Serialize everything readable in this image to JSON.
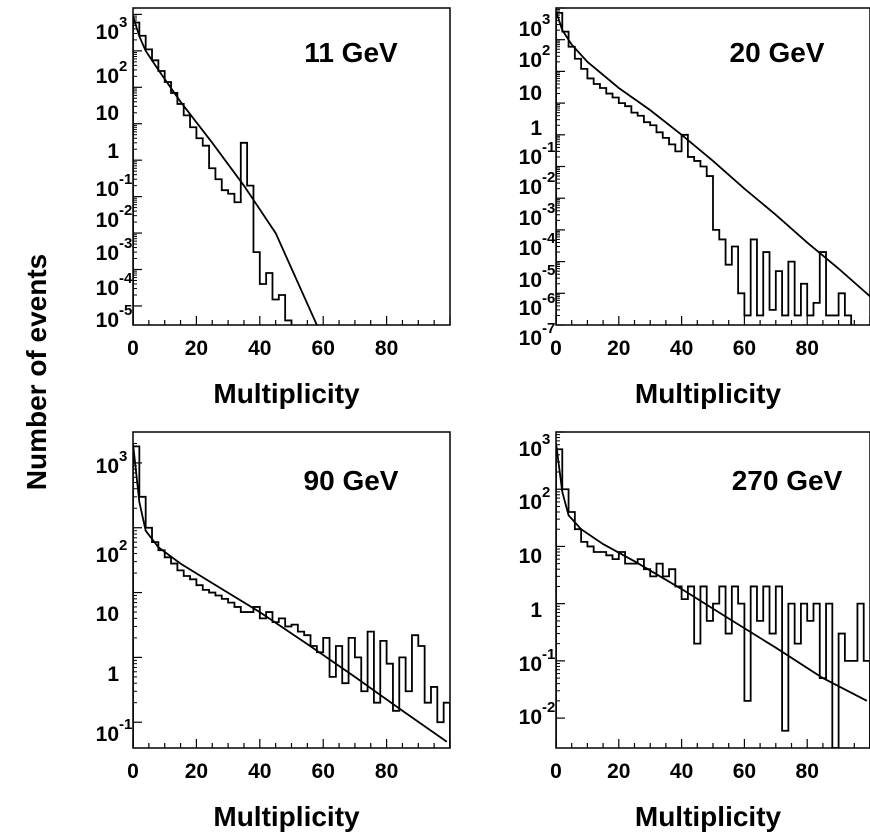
{
  "ylabel": "Number of events",
  "chart_data": [
    {
      "type": "line",
      "title": "11 GeV",
      "xlabel": "Multiplicity",
      "xlim": [
        0,
        100
      ],
      "xticks": [
        "0",
        "20",
        "40",
        "60",
        "80"
      ],
      "yscale": "log",
      "ylim": [
        3e-06,
        1500
      ],
      "yticks": [
        {
          "base": "10",
          "exp": "3"
        },
        {
          "base": "10",
          "exp": "2"
        },
        {
          "base": "10",
          "exp": ""
        },
        {
          "base": "1",
          "exp": ""
        },
        {
          "base": "10",
          "exp": "-1"
        },
        {
          "base": "10",
          "exp": "-2"
        },
        {
          "base": "10",
          "exp": "-3"
        },
        {
          "base": "10",
          "exp": "-4"
        },
        {
          "base": "10",
          "exp": "-5"
        }
      ],
      "series": [
        {
          "style": "histogram",
          "x": [
            0,
            2,
            4,
            6,
            8,
            10,
            12,
            14,
            16,
            18,
            20,
            22,
            24,
            26,
            28,
            30,
            32,
            34,
            36,
            38,
            40,
            42,
            44,
            46,
            48
          ],
          "y": [
            600,
            260,
            110,
            55,
            28,
            14,
            7,
            3.5,
            1.7,
            0.8,
            0.4,
            0.25,
            0.06,
            0.03,
            0.015,
            0.012,
            0.007,
            0.3,
            0.02,
            0.0003,
            4e-05,
            8e-05,
            1.5e-05,
            2e-05,
            4e-06
          ]
        },
        {
          "style": "fit",
          "x": [
            0,
            2,
            4,
            8,
            15,
            25,
            35,
            45,
            58
          ],
          "y": [
            900,
            250,
            100,
            30,
            4,
            0.3,
            0.02,
            0.001,
            3e-06
          ]
        }
      ]
    },
    {
      "type": "line",
      "title": "20 GeV",
      "xlabel": "Multiplicity",
      "xlim": [
        0,
        100
      ],
      "xticks": [
        "0",
        "20",
        "40",
        "60",
        "80"
      ],
      "yscale": "log",
      "ylim": [
        1e-07,
        1000
      ],
      "yticks": [
        {
          "base": "10",
          "exp": "3"
        },
        {
          "base": "10",
          "exp": "2"
        },
        {
          "base": "10",
          "exp": ""
        },
        {
          "base": "1",
          "exp": ""
        },
        {
          "base": "10",
          "exp": "-1"
        },
        {
          "base": "10",
          "exp": "-2"
        },
        {
          "base": "10",
          "exp": "-3"
        },
        {
          "base": "10",
          "exp": "-4"
        },
        {
          "base": "10",
          "exp": "-5"
        },
        {
          "base": "10",
          "exp": "-6"
        },
        {
          "base": "10",
          "exp": "-7"
        }
      ],
      "series": [
        {
          "style": "histogram",
          "x": [
            0,
            2,
            4,
            6,
            8,
            10,
            12,
            14,
            16,
            18,
            20,
            22,
            24,
            26,
            28,
            30,
            32,
            34,
            36,
            38,
            40,
            42,
            44,
            46,
            48,
            50,
            52,
            54,
            56,
            58,
            60,
            62,
            64,
            66,
            68,
            70,
            72,
            74,
            76,
            78,
            80,
            82,
            84,
            86,
            88,
            90,
            92
          ],
          "y": [
            700,
            180,
            60,
            25,
            12,
            6,
            4,
            3,
            2,
            1.5,
            1,
            0.8,
            0.5,
            0.4,
            0.25,
            0.2,
            0.12,
            0.08,
            0.05,
            0.03,
            0.1,
            0.02,
            0.015,
            0.01,
            0.005,
            0.0001,
            5e-05,
            8e-06,
            3e-05,
            1e-06,
            2e-07,
            5e-05,
            2e-07,
            2e-05,
            3e-07,
            5e-06,
            2e-07,
            1e-05,
            2e-07,
            2e-06,
            2e-07,
            5e-07,
            2e-05,
            2e-07,
            2e-07,
            1e-06,
            2e-07
          ]
        },
        {
          "style": "fit",
          "x": [
            0,
            2,
            5,
            10,
            20,
            30,
            40,
            50,
            60,
            70,
            80,
            90,
            100
          ],
          "y": [
            800,
            200,
            70,
            20,
            3,
            0.6,
            0.1,
            0.015,
            0.002,
            0.0003,
            4e-05,
            6e-06,
            8e-07
          ]
        }
      ]
    },
    {
      "type": "line",
      "title": "90 GeV",
      "xlabel": "Multiplicity",
      "xlim": [
        0,
        100
      ],
      "xticks": [
        "0",
        "20",
        "40",
        "60",
        "80"
      ],
      "yscale": "log",
      "ylim": [
        0.04,
        3000
      ],
      "yticks": [
        {
          "base": "10",
          "exp": "3"
        },
        {
          "base": "10",
          "exp": "2"
        },
        {
          "base": "10",
          "exp": ""
        },
        {
          "base": "1",
          "exp": ""
        },
        {
          "base": "10",
          "exp": "-1"
        }
      ],
      "series": [
        {
          "style": "histogram",
          "x": [
            0,
            2,
            4,
            6,
            8,
            10,
            12,
            14,
            16,
            18,
            20,
            22,
            24,
            26,
            28,
            30,
            32,
            34,
            36,
            38,
            40,
            42,
            44,
            46,
            48,
            50,
            52,
            54,
            56,
            58,
            60,
            62,
            64,
            66,
            68,
            70,
            72,
            74,
            76,
            78,
            80,
            82,
            84,
            86,
            88,
            90,
            92,
            94,
            96,
            98
          ],
          "y": [
            1800,
            300,
            100,
            60,
            45,
            35,
            28,
            22,
            18,
            16,
            13,
            11,
            10,
            9,
            8,
            7,
            6,
            5,
            5,
            6,
            4,
            5,
            3.5,
            4,
            3,
            3.2,
            2.5,
            2.2,
            1.5,
            1.2,
            2,
            0.5,
            1.5,
            0.4,
            2,
            1,
            0.3,
            2.5,
            0.2,
            1.8,
            0.8,
            0.15,
            1,
            0.3,
            2.2,
            1.5,
            0.2,
            0.35,
            0.1,
            0.2
          ]
        },
        {
          "style": "fit",
          "x": [
            0,
            2,
            4,
            8,
            15,
            25,
            40,
            55,
            70,
            85,
            99
          ],
          "y": [
            2000,
            250,
            90,
            50,
            28,
            14,
            5,
            1.6,
            0.5,
            0.15,
            0.05
          ]
        }
      ]
    },
    {
      "type": "line",
      "title": "270 GeV",
      "xlabel": "Multiplicity",
      "xlim": [
        0,
        100
      ],
      "xticks": [
        "0",
        "20",
        "40",
        "60",
        "80"
      ],
      "yscale": "log",
      "ylim": [
        0.003,
        1000
      ],
      "yticks": [
        {
          "base": "10",
          "exp": "3"
        },
        {
          "base": "10",
          "exp": "2"
        },
        {
          "base": "10",
          "exp": ""
        },
        {
          "base": "1",
          "exp": ""
        },
        {
          "base": "10",
          "exp": "-1"
        },
        {
          "base": "10",
          "exp": "-2"
        }
      ],
      "series": [
        {
          "style": "histogram",
          "x": [
            0,
            2,
            4,
            6,
            8,
            10,
            12,
            14,
            16,
            18,
            20,
            22,
            24,
            26,
            28,
            30,
            32,
            34,
            36,
            38,
            40,
            42,
            44,
            46,
            48,
            50,
            52,
            54,
            56,
            58,
            60,
            62,
            64,
            66,
            68,
            70,
            72,
            74,
            76,
            78,
            80,
            82,
            84,
            86,
            88,
            90,
            92,
            94,
            96,
            98
          ],
          "y": [
            500,
            100,
            40,
            20,
            12,
            10,
            8,
            8,
            7,
            6,
            8,
            5,
            5,
            6,
            4,
            3,
            5,
            3,
            4,
            2,
            1.2,
            2,
            0.2,
            2,
            0.5,
            1,
            2,
            0.3,
            2,
            1,
            0.02,
            2,
            0.5,
            2,
            0.3,
            2,
            0.006,
            1,
            0.2,
            1,
            0.5,
            1,
            0.05,
            1,
            0.003,
            0.3,
            0.1,
            0.1,
            1,
            0.1
          ]
        },
        {
          "style": "fit",
          "x": [
            0,
            2,
            4,
            8,
            15,
            25,
            40,
            55,
            70,
            85,
            99
          ],
          "y": [
            650,
            90,
            35,
            20,
            11,
            5.5,
            1.8,
            0.55,
            0.17,
            0.05,
            0.02
          ]
        }
      ]
    }
  ]
}
